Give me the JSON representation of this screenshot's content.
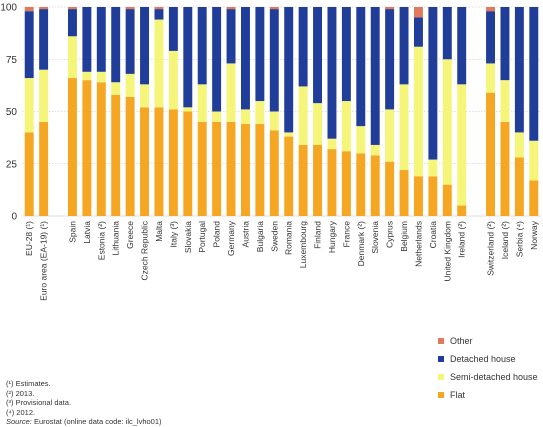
{
  "chart_data": {
    "type": "bar",
    "stacked": true,
    "ylim": [
      0,
      100
    ],
    "yticks": [
      0,
      25,
      50,
      75,
      100
    ],
    "grid": true,
    "categories": [
      "EU-28 (¹)",
      "Euro area (EA-19) (¹)",
      "",
      "Spain",
      "Latvia",
      "Estonia (²)",
      "Lithuania",
      "Greece",
      "Czech Republic",
      "Malta",
      "Italy (³)",
      "Slovakia",
      "Portugal",
      "Poland",
      "Germany",
      "Austria",
      "Bulgaria",
      "Sweden",
      "Romania",
      "Luxembourg",
      "Finland",
      "Hungary",
      "France",
      "Denmark (²)",
      "Slovenia",
      "Cyprus",
      "Belgium",
      "Netherlands",
      "Croatia",
      "United Kingdom",
      "Ireland (²)",
      "",
      "Switzerland (²)",
      "Iceland (²)",
      "Serbia (⁴)",
      "Norway"
    ],
    "series": [
      {
        "name": "Flat",
        "color": "#f5a623",
        "values": [
          40,
          45,
          null,
          66,
          65,
          64,
          58,
          57,
          52,
          52,
          51,
          50,
          45,
          45,
          45,
          44,
          44,
          41,
          38,
          34,
          34,
          32,
          31,
          30,
          29,
          26,
          22,
          19,
          19,
          15,
          5,
          null,
          59,
          45,
          28,
          17
        ]
      },
      {
        "name": "Semi-detached house",
        "color": "#f5f57a",
        "values": [
          26,
          25,
          null,
          20,
          4,
          5,
          6,
          11,
          11,
          42,
          28,
          2,
          18,
          5,
          28,
          7,
          11,
          9,
          2,
          28,
          20,
          5,
          24,
          13,
          5,
          25,
          41,
          62,
          8,
          60,
          58,
          null,
          14,
          20,
          12,
          19
        ]
      },
      {
        "name": "Detached house",
        "color": "#1f3d99",
        "values": [
          32,
          29,
          null,
          13,
          31,
          31,
          36,
          31,
          37,
          5,
          21,
          48,
          37,
          50,
          26,
          49,
          45,
          49,
          60,
          38,
          46,
          63,
          45,
          57,
          66,
          48,
          37,
          14,
          73,
          25,
          37,
          null,
          25,
          35,
          60,
          64
        ]
      },
      {
        "name": "Other",
        "color": "#e07a5f",
        "values": [
          2,
          1,
          null,
          1,
          0,
          0,
          0,
          1,
          0,
          1,
          0,
          0,
          0,
          0,
          1,
          0,
          0,
          1,
          0,
          0,
          0,
          0,
          0,
          0,
          0,
          1,
          0,
          5,
          0,
          0,
          0,
          null,
          2,
          0,
          0,
          0
        ]
      }
    ]
  },
  "legend": {
    "items": [
      {
        "label": "Other",
        "color": "#e07a5f"
      },
      {
        "label": "Detached house",
        "color": "#1f3d99"
      },
      {
        "label": "Semi-detached house",
        "color": "#f5f57a"
      },
      {
        "label": "Flat",
        "color": "#f5a623"
      }
    ]
  },
  "notes": {
    "n1": "(¹) Estimates.",
    "n2": "(²) 2013.",
    "n3": "(³) Provisional data.",
    "n4": "(⁴) 2012.",
    "source_label": "Source:",
    "source_text": " Eurostat (online data code: ilc_lvho01)"
  }
}
